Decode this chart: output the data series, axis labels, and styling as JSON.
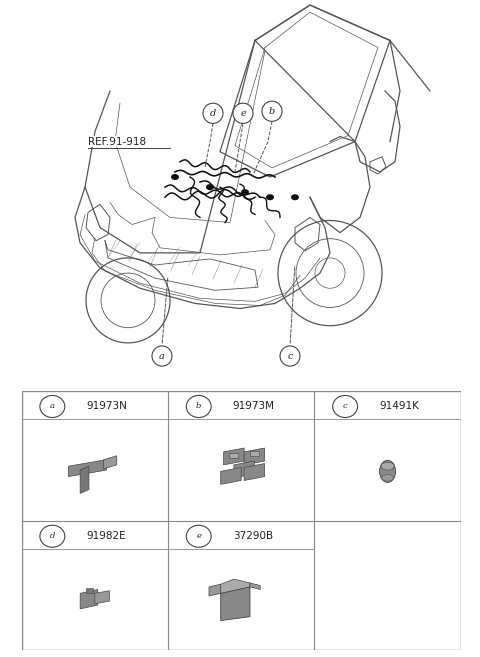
{
  "bg_color": "#ffffff",
  "fig_width": 4.8,
  "fig_height": 6.57,
  "dpi": 100,
  "parts_table": {
    "cells": [
      {
        "label": "a",
        "part_num": "91973N",
        "row": 0,
        "col": 0
      },
      {
        "label": "b",
        "part_num": "91973M",
        "row": 0,
        "col": 1
      },
      {
        "label": "c",
        "part_num": "91491K",
        "row": 0,
        "col": 2
      },
      {
        "label": "d",
        "part_num": "91982E",
        "row": 1,
        "col": 0
      },
      {
        "label": "e",
        "part_num": "37290B",
        "row": 1,
        "col": 1
      }
    ]
  },
  "ref_label": "REF.91-918",
  "table_border_color": "#888888",
  "label_circle_color": "#444444",
  "text_color": "#222222",
  "line_color": "#555555",
  "wiring_color": "#111111",
  "part_color": "#888888",
  "part_edge_color": "#444444"
}
